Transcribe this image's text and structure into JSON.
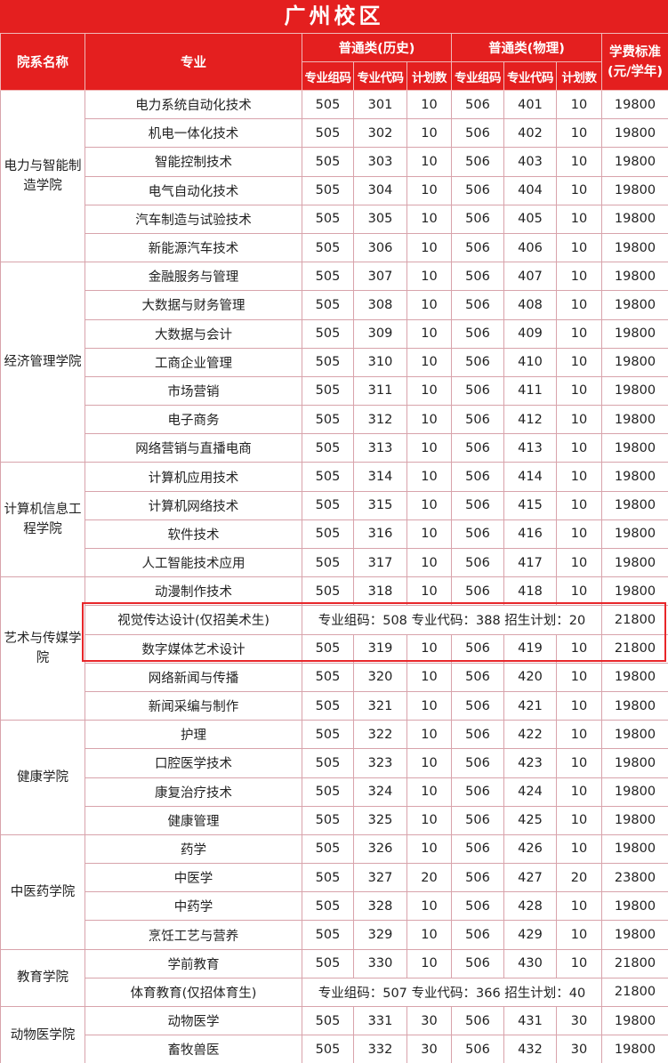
{
  "title": "广州校区",
  "headers": {
    "dept": "院系名称",
    "major": "专业",
    "hist": "普通类(历史)",
    "phys": "普通类(物理)",
    "fee": "学费标准\n(元/学年)",
    "fee_l1": "学费标准",
    "fee_l2": "(元/学年)",
    "group": "专业组码",
    "code": "专业代码",
    "plan": "计划数"
  },
  "highlight_color": "#e8262a",
  "header_color": "#e41f1f",
  "departments": [
    {
      "name": "电力与智能制造学院",
      "majors": [
        [
          "电力系统自动化技术",
          "505",
          "301",
          "10",
          "506",
          "401",
          "10",
          "19800"
        ],
        [
          "机电一体化技术",
          "505",
          "302",
          "10",
          "506",
          "402",
          "10",
          "19800"
        ],
        [
          "智能控制技术",
          "505",
          "303",
          "10",
          "506",
          "403",
          "10",
          "19800"
        ],
        [
          "电气自动化技术",
          "505",
          "304",
          "10",
          "506",
          "404",
          "10",
          "19800"
        ],
        [
          "汽车制造与试验技术",
          "505",
          "305",
          "10",
          "506",
          "405",
          "10",
          "19800"
        ],
        [
          "新能源汽车技术",
          "505",
          "306",
          "10",
          "506",
          "406",
          "10",
          "19800"
        ]
      ]
    },
    {
      "name": "经济管理学院",
      "majors": [
        [
          "金融服务与管理",
          "505",
          "307",
          "10",
          "506",
          "407",
          "10",
          "19800"
        ],
        [
          "大数据与财务管理",
          "505",
          "308",
          "10",
          "506",
          "408",
          "10",
          "19800"
        ],
        [
          "大数据与会计",
          "505",
          "309",
          "10",
          "506",
          "409",
          "10",
          "19800"
        ],
        [
          "工商企业管理",
          "505",
          "310",
          "10",
          "506",
          "410",
          "10",
          "19800"
        ],
        [
          "市场营销",
          "505",
          "311",
          "10",
          "506",
          "411",
          "10",
          "19800"
        ],
        [
          "电子商务",
          "505",
          "312",
          "10",
          "506",
          "412",
          "10",
          "19800"
        ],
        [
          "网络营销与直播电商",
          "505",
          "313",
          "10",
          "506",
          "413",
          "10",
          "19800"
        ]
      ]
    },
    {
      "name": "计算机信息工程学院",
      "majors": [
        [
          "计算机应用技术",
          "505",
          "314",
          "10",
          "506",
          "414",
          "10",
          "19800"
        ],
        [
          "计算机网络技术",
          "505",
          "315",
          "10",
          "506",
          "415",
          "10",
          "19800"
        ],
        [
          "软件技术",
          "505",
          "316",
          "10",
          "506",
          "416",
          "10",
          "19800"
        ],
        [
          "人工智能技术应用",
          "505",
          "317",
          "10",
          "506",
          "417",
          "10",
          "19800"
        ]
      ]
    },
    {
      "name": "艺术与传媒学院",
      "majors": [
        [
          "动漫制作技术",
          "505",
          "318",
          "10",
          "506",
          "418",
          "10",
          "19800"
        ],
        {
          "major": "视觉传达设计(仅招美术生)",
          "note": "专业组码：508 专业代码：388 招生计划：20",
          "fee": "21800"
        },
        [
          "数字媒体艺术设计",
          "505",
          "319",
          "10",
          "506",
          "419",
          "10",
          "21800"
        ],
        [
          "网络新闻与传播",
          "505",
          "320",
          "10",
          "506",
          "420",
          "10",
          "19800"
        ],
        [
          "新闻采编与制作",
          "505",
          "321",
          "10",
          "506",
          "421",
          "10",
          "19800"
        ]
      ]
    },
    {
      "name": "健康学院",
      "majors": [
        [
          "护理",
          "505",
          "322",
          "10",
          "506",
          "422",
          "10",
          "19800"
        ],
        [
          "口腔医学技术",
          "505",
          "323",
          "10",
          "506",
          "423",
          "10",
          "19800"
        ],
        [
          "康复治疗技术",
          "505",
          "324",
          "10",
          "506",
          "424",
          "10",
          "19800"
        ],
        [
          "健康管理",
          "505",
          "325",
          "10",
          "506",
          "425",
          "10",
          "19800"
        ]
      ]
    },
    {
      "name": "中医药学院",
      "majors": [
        [
          "药学",
          "505",
          "326",
          "10",
          "506",
          "426",
          "10",
          "19800"
        ],
        [
          "中医学",
          "505",
          "327",
          "20",
          "506",
          "427",
          "20",
          "23800"
        ],
        [
          "中药学",
          "505",
          "328",
          "10",
          "506",
          "428",
          "10",
          "19800"
        ],
        [
          "烹饪工艺与营养",
          "505",
          "329",
          "10",
          "506",
          "429",
          "10",
          "19800"
        ]
      ]
    },
    {
      "name": "教育学院",
      "majors": [
        [
          "学前教育",
          "505",
          "330",
          "10",
          "506",
          "430",
          "10",
          "21800"
        ],
        {
          "major": "体育教育(仅招体育生)",
          "note": "专业组码：507 专业代码：366 招生计划：40",
          "fee": "21800"
        }
      ]
    },
    {
      "name": "动物医学院",
      "majors": [
        [
          "动物医学",
          "505",
          "331",
          "30",
          "506",
          "431",
          "30",
          "19800"
        ],
        [
          "畜牧兽医",
          "505",
          "332",
          "30",
          "506",
          "432",
          "30",
          "19800"
        ]
      ]
    }
  ]
}
